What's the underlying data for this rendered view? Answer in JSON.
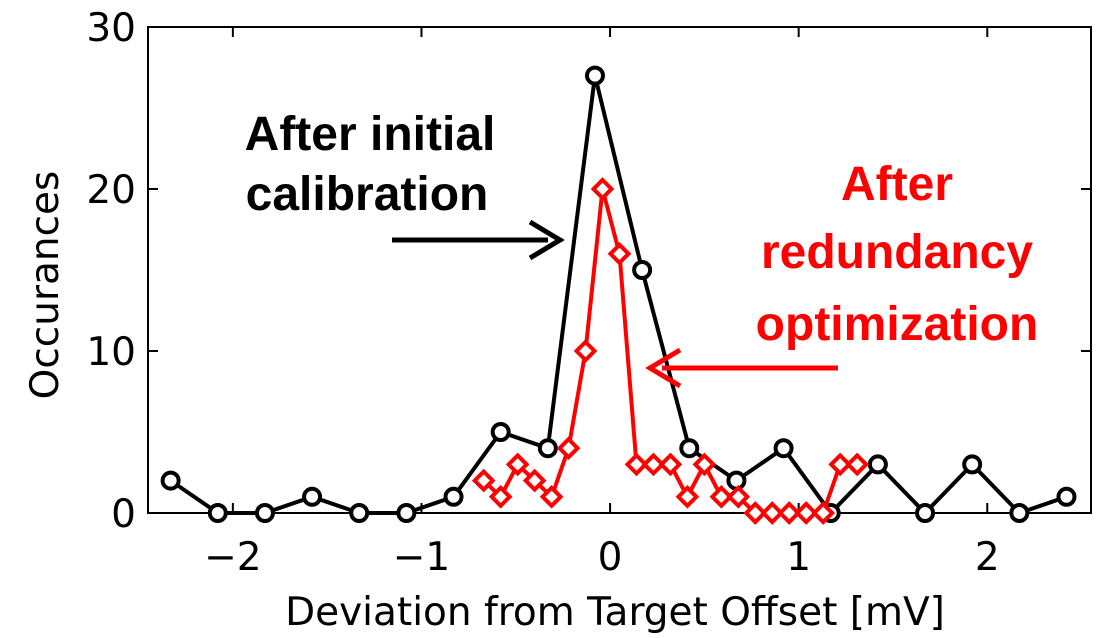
{
  "chart_data": {
    "type": "line",
    "xlabel": "Deviation from Target Offset [mV]",
    "ylabel": "Occurances",
    "xlim": [
      -2.45,
      2.55
    ],
    "ylim": [
      0,
      30
    ],
    "xticks": [
      -2,
      -1,
      0,
      1,
      2
    ],
    "xtick_labels": [
      "−2",
      "−1",
      "0",
      "1",
      "2"
    ],
    "yticks": [
      0,
      10,
      20,
      30
    ],
    "ytick_labels": [
      "0",
      "10",
      "20",
      "30"
    ],
    "grid": false,
    "series": [
      {
        "color": "#000000",
        "marker": "circle",
        "x": [
          -2.33,
          -2.08,
          -1.83,
          -1.58,
          -1.33,
          -1.08,
          -0.83,
          -0.58,
          -0.33,
          -0.08,
          0.17,
          0.42,
          0.67,
          0.92,
          1.17,
          1.42,
          1.67,
          1.92,
          2.17,
          2.42
        ],
        "y": [
          2,
          0,
          0,
          1,
          0,
          0,
          1,
          5,
          4,
          27,
          15,
          4,
          2,
          4,
          0,
          3,
          0,
          3,
          0,
          1
        ]
      },
      {
        "color": "#ff0000",
        "marker": "diamond",
        "x": [
          -0.67,
          -0.58,
          -0.49,
          -0.4,
          -0.31,
          -0.22,
          -0.13,
          -0.04,
          0.05,
          0.14,
          0.23,
          0.32,
          0.41,
          0.5,
          0.59,
          0.68,
          0.77,
          0.86,
          0.95,
          1.04,
          1.13,
          1.22,
          1.31
        ],
        "y": [
          2,
          1,
          3,
          2,
          1,
          4,
          10,
          20,
          16,
          3,
          3,
          3,
          1,
          3,
          1,
          1,
          0,
          0,
          0,
          0,
          0,
          3,
          3
        ]
      }
    ],
    "annotations": [
      {
        "lines": [
          "After initial",
          "calibration"
        ],
        "color": "#000000"
      },
      {
        "lines": [
          "After",
          "redundancy",
          "optimization"
        ],
        "color": "#ff0000"
      }
    ]
  }
}
